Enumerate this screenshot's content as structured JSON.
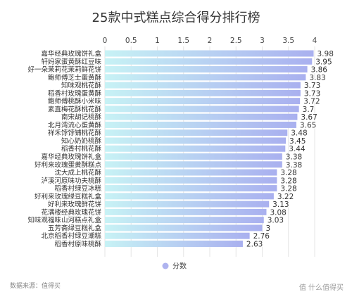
{
  "chart_data": {
    "type": "bar",
    "orientation": "horizontal",
    "title": "25款中式糕点综合得分排行榜",
    "categories": [
      "嘉华经典玫瑰饼礼盒",
      "轩妈家蛋黄酥红豆味",
      "好一朵茉莉花茉莉鲜花饼",
      "鲍师傅芝士蛋黄酥",
      "知味观桃花酥",
      "稻香村玫瑰蛋黄酥",
      "鲍师傅桃酥小米味",
      "素直梅花酥桃花酥",
      "南宋胡记桃酥",
      "北月湾流心蛋黄酥",
      "祥禾饽饽铺桃花酥",
      "知心奶奶桃酥",
      "稻香村桃花酥",
      "嘉华经典玫瑰饼礼盒",
      "好利来玫瑰蛋黄酥糕点",
      "沈大成上桃花酥",
      "泸溪河原味功夫桃酥",
      "稻香村绿豆冰糕",
      "好利来玫瑰绿豆糕礼盒",
      "好利来玫瑰鲜花饼",
      "花满楼经典玫瑰花饼",
      "知味观福味山河糕点礼盒",
      "五芳斋绿豆糕礼盒",
      "北京稻香村绿豆潮糕",
      "稻香村原味桃酥"
    ],
    "series": [
      {
        "name": "分数",
        "values": [
          3.98,
          3.95,
          3.86,
          3.83,
          3.73,
          3.73,
          3.72,
          3.7,
          3.67,
          3.65,
          3.48,
          3.45,
          3.44,
          3.38,
          3.38,
          3.28,
          3.28,
          3.28,
          3.22,
          3.13,
          3.08,
          3.03,
          3.0,
          2.76,
          2.63
        ]
      }
    ],
    "value_labels": [
      "3.98",
      "3.95",
      "3.86",
      "3.83",
      "3.73",
      "3.73",
      "3.72",
      "3.7",
      "3.67",
      "3.65",
      "3.48",
      "3.45",
      "3.44",
      "3.38",
      "3.38",
      "3.28",
      "3.28",
      "3.28",
      "3.22",
      "3.13",
      "3.08",
      "3.03",
      "3",
      "2.76",
      "2.63"
    ],
    "xticks": [
      "0",
      "0.5",
      "1",
      "1.5",
      "2",
      "2.5",
      "3",
      "3.5",
      "4"
    ],
    "xlim": [
      0,
      4.2
    ],
    "grid": true,
    "legend_position": "bottom",
    "colors": {
      "bar_gradient_start": "#c7f2f5",
      "bar_gradient_end": "#a9b0ef",
      "legend_marker": "#aeb3ef",
      "grid": "#e6e6e6"
    }
  },
  "footer": {
    "source": "数据来源：值得买",
    "watermark": "值 什么值得买"
  }
}
